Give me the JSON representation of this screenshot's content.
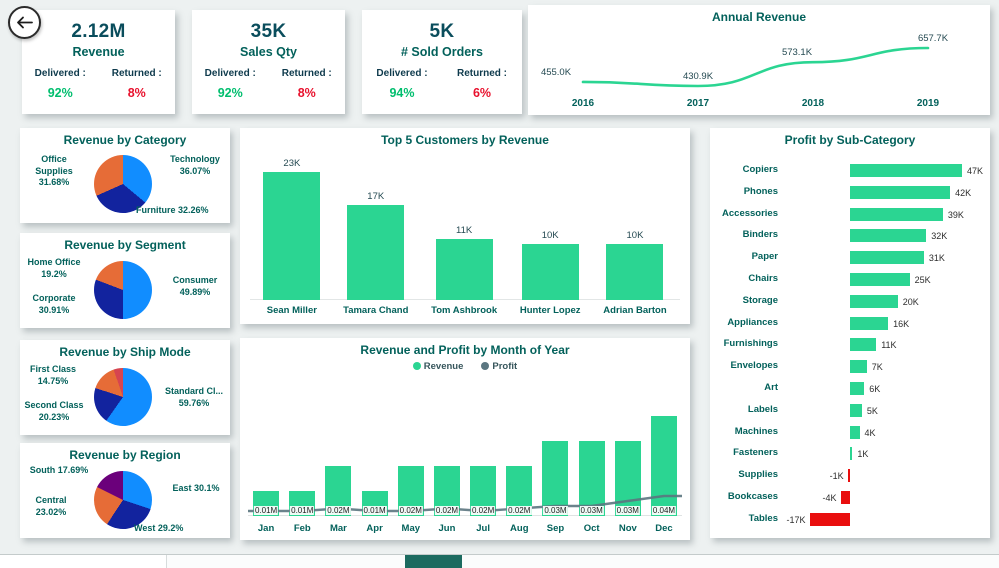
{
  "colors": {
    "teal": "#03615B",
    "dark_value": "#0A4D5C",
    "green": "#2BD592",
    "kpi_green": "#00BE6E",
    "kpi_red": "#E8112D",
    "negative_red": "#E90E0E",
    "profit_line": "#5B7680",
    "active_tab": "#1C6B60"
  },
  "back_button": {
    "icon": "left-arrow"
  },
  "kpi_cards": [
    {
      "value": "2.12M",
      "label": "Revenue",
      "delivered_label": "Delivered :",
      "returned_label": "Returned :",
      "delivered_value": "92%",
      "returned_value": "8%"
    },
    {
      "value": "35K",
      "label": "Sales Qty",
      "delivered_label": "Delivered :",
      "returned_label": "Returned :",
      "delivered_value": "92%",
      "returned_value": "8%"
    },
    {
      "value": "5K",
      "label": "# Sold Orders",
      "delivered_label": "Delivered :",
      "returned_label": "Returned :",
      "delivered_value": "94%",
      "returned_value": "6%"
    }
  ],
  "chart_data": [
    {
      "id": "annual_revenue",
      "type": "line",
      "title": "Annual Revenue",
      "x": [
        "2016",
        "2017",
        "2018",
        "2019"
      ],
      "series": [
        {
          "name": "Revenue",
          "values_k": [
            455.0,
            430.9,
            573.1,
            657.7
          ]
        }
      ],
      "point_labels": [
        "455.0K",
        "430.9K",
        "573.1K",
        "657.7K"
      ],
      "line_color": "#2BD592"
    },
    {
      "id": "revenue_by_category",
      "type": "pie",
      "title": "Revenue by Category",
      "slices": [
        {
          "name": "Technology",
          "pct": 36.07,
          "pct_label": "36.07%",
          "color": "#118DFF"
        },
        {
          "name": "Furniture",
          "pct": 32.26,
          "pct_label": "32.26%",
          "color": "#12239E"
        },
        {
          "name": "Office Supplies",
          "pct": 31.68,
          "pct_label": "31.68%",
          "color": "#E66C37"
        }
      ]
    },
    {
      "id": "revenue_by_segment",
      "type": "pie",
      "title": "Revenue by Segment",
      "slices": [
        {
          "name": "Consumer",
          "pct": 49.89,
          "pct_label": "49.89%",
          "color": "#118DFF"
        },
        {
          "name": "Corporate",
          "pct": 30.91,
          "pct_label": "30.91%",
          "color": "#12239E"
        },
        {
          "name": "Home Office",
          "pct": 19.2,
          "pct_label": "19.2%",
          "color": "#E66C37"
        }
      ]
    },
    {
      "id": "revenue_by_ship_mode",
      "type": "pie",
      "title": "Revenue by Ship Mode",
      "slices": [
        {
          "name": "Standard Cl...",
          "pct": 59.76,
          "pct_label": "59.76%",
          "color": "#118DFF"
        },
        {
          "name": "Second Class",
          "pct": 20.23,
          "pct_label": "20.23%",
          "color": "#12239E"
        },
        {
          "name": "First Class",
          "pct": 14.75,
          "pct_label": "14.75%",
          "color": "#E66C37"
        },
        {
          "name": "",
          "pct": 5.26,
          "pct_label": "",
          "color": "#D64550"
        }
      ]
    },
    {
      "id": "revenue_by_region",
      "type": "pie",
      "title": "Revenue by Region",
      "slices": [
        {
          "name": "East",
          "pct": 30.1,
          "pct_label": "30.1%",
          "color": "#118DFF"
        },
        {
          "name": "West",
          "pct": 29.2,
          "pct_label": "29.2%",
          "color": "#12239E"
        },
        {
          "name": "Central",
          "pct": 23.02,
          "pct_label": "23.02%",
          "color": "#E66C37"
        },
        {
          "name": "South",
          "pct": 17.69,
          "pct_label": "17.69%",
          "color": "#6B007B"
        }
      ]
    },
    {
      "id": "top5_customers",
      "type": "bar",
      "title": "Top 5 Customers by Revenue",
      "categories": [
        "Sean Miller",
        "Tamara Chand",
        "Tom Ashbrook",
        "Hunter Lopez",
        "Adrian Barton"
      ],
      "values_k": [
        23,
        17,
        11,
        10,
        10
      ],
      "labels": [
        "23K",
        "17K",
        "11K",
        "10K",
        "10K"
      ],
      "bar_color": "#2BD592"
    },
    {
      "id": "revenue_profit_by_month",
      "type": "bar",
      "title": "Revenue and Profit by Month of Year",
      "categories": [
        "Jan",
        "Feb",
        "Mar",
        "Apr",
        "May",
        "Jun",
        "Jul",
        "Aug",
        "Sep",
        "Oct",
        "Nov",
        "Dec"
      ],
      "legend": [
        {
          "label": "Revenue",
          "color": "#2BD592"
        },
        {
          "label": "Profit",
          "color": "#5B7680"
        }
      ],
      "series": [
        {
          "name": "Revenue",
          "values_m": [
            0.01,
            0.01,
            0.02,
            0.01,
            0.02,
            0.02,
            0.02,
            0.02,
            0.03,
            0.03,
            0.03,
            0.04
          ],
          "labels": [
            "0.01M",
            "0.01M",
            "0.02M",
            "0.01M",
            "0.02M",
            "0.02M",
            "0.02M",
            "0.02M",
            "0.03M",
            "0.03M",
            "0.03M",
            "0.04M"
          ]
        },
        {
          "name": "Profit",
          "values_m_estimated": [
            0.002,
            0.002,
            0.003,
            0.002,
            0.002,
            0.003,
            0.002,
            0.003,
            0.004,
            0.004,
            0.006,
            0.008
          ]
        }
      ]
    },
    {
      "id": "profit_by_subcategory",
      "type": "bar",
      "orientation": "horizontal",
      "title": "Profit by Sub-Category",
      "positive_color": "#2BD592",
      "negative_color": "#E90E0E",
      "items": [
        {
          "name": "Copiers",
          "value_k": 47,
          "label": "47K"
        },
        {
          "name": "Phones",
          "value_k": 42,
          "label": "42K"
        },
        {
          "name": "Accessories",
          "value_k": 39,
          "label": "39K"
        },
        {
          "name": "Binders",
          "value_k": 32,
          "label": "32K"
        },
        {
          "name": "Paper",
          "value_k": 31,
          "label": "31K"
        },
        {
          "name": "Chairs",
          "value_k": 25,
          "label": "25K"
        },
        {
          "name": "Storage",
          "value_k": 20,
          "label": "20K"
        },
        {
          "name": "Appliances",
          "value_k": 16,
          "label": "16K"
        },
        {
          "name": "Furnishings",
          "value_k": 11,
          "label": "11K"
        },
        {
          "name": "Envelopes",
          "value_k": 7,
          "label": "7K"
        },
        {
          "name": "Art",
          "value_k": 6,
          "label": "6K"
        },
        {
          "name": "Labels",
          "value_k": 5,
          "label": "5K"
        },
        {
          "name": "Machines",
          "value_k": 4,
          "label": "4K"
        },
        {
          "name": "Fasteners",
          "value_k": 1,
          "label": "1K"
        },
        {
          "name": "Supplies",
          "value_k": -1,
          "label": "-1K"
        },
        {
          "name": "Bookcases",
          "value_k": -4,
          "label": "-4K"
        },
        {
          "name": "Tables",
          "value_k": -17,
          "label": "-17K"
        }
      ]
    }
  ],
  "footer": {
    "active_tab_color": "#1C6B60"
  }
}
